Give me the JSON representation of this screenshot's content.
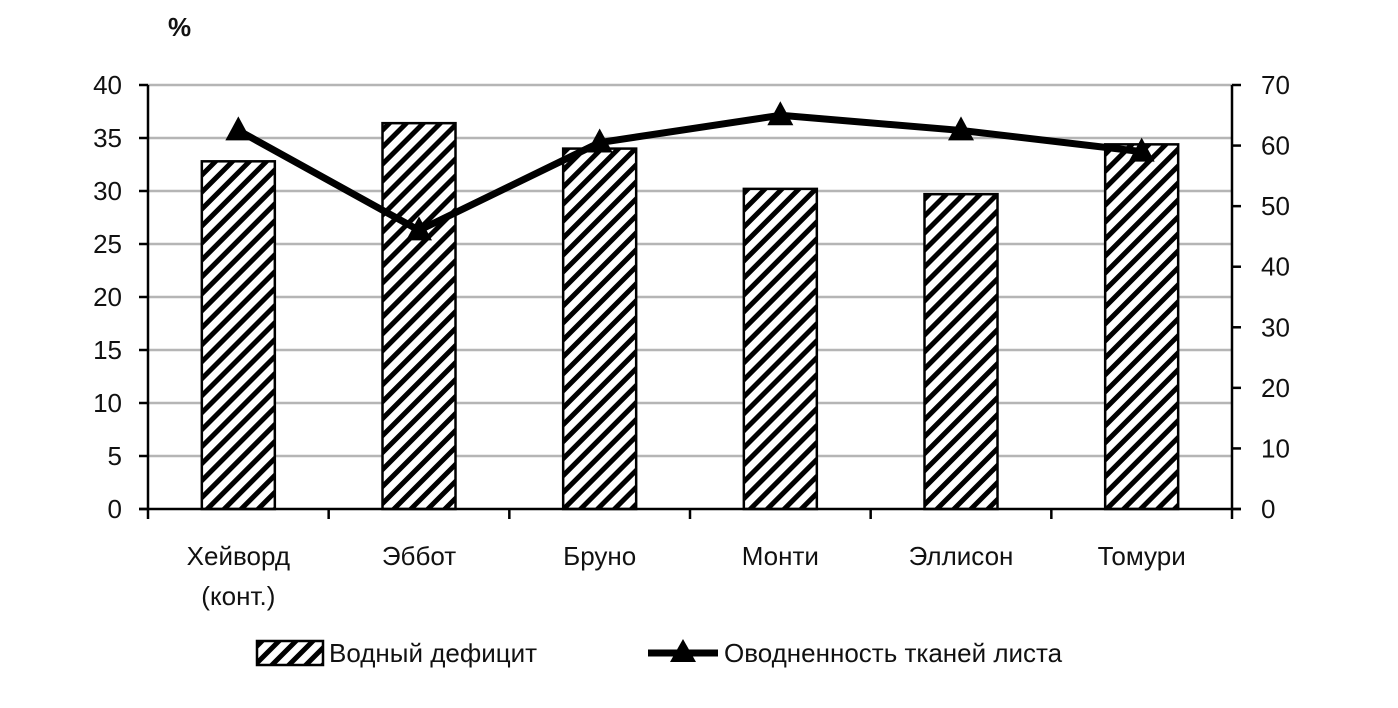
{
  "chart_data": {
    "type": "bar",
    "unit_label": "%",
    "categories": [
      [
        "Хейворд",
        "(конт.)"
      ],
      [
        "Эббот"
      ],
      [
        "Бруно"
      ],
      [
        "Монти"
      ],
      [
        "Эллисон"
      ],
      [
        "Томури"
      ]
    ],
    "series": [
      {
        "name": "Водный дефицит",
        "kind": "bar",
        "axis": "left",
        "values": [
          32.8,
          36.4,
          34.0,
          30.2,
          29.7,
          34.4
        ]
      },
      {
        "name": "Оводненность тканей листа",
        "kind": "line",
        "axis": "right",
        "values": [
          62.5,
          46.0,
          60.5,
          65.0,
          62.5,
          59.0
        ]
      }
    ],
    "y_left": {
      "min": 0,
      "max": 40,
      "step": 5
    },
    "y_right": {
      "min": 0,
      "max": 70,
      "step": 10
    },
    "grid": true,
    "legend_position": "bottom"
  }
}
